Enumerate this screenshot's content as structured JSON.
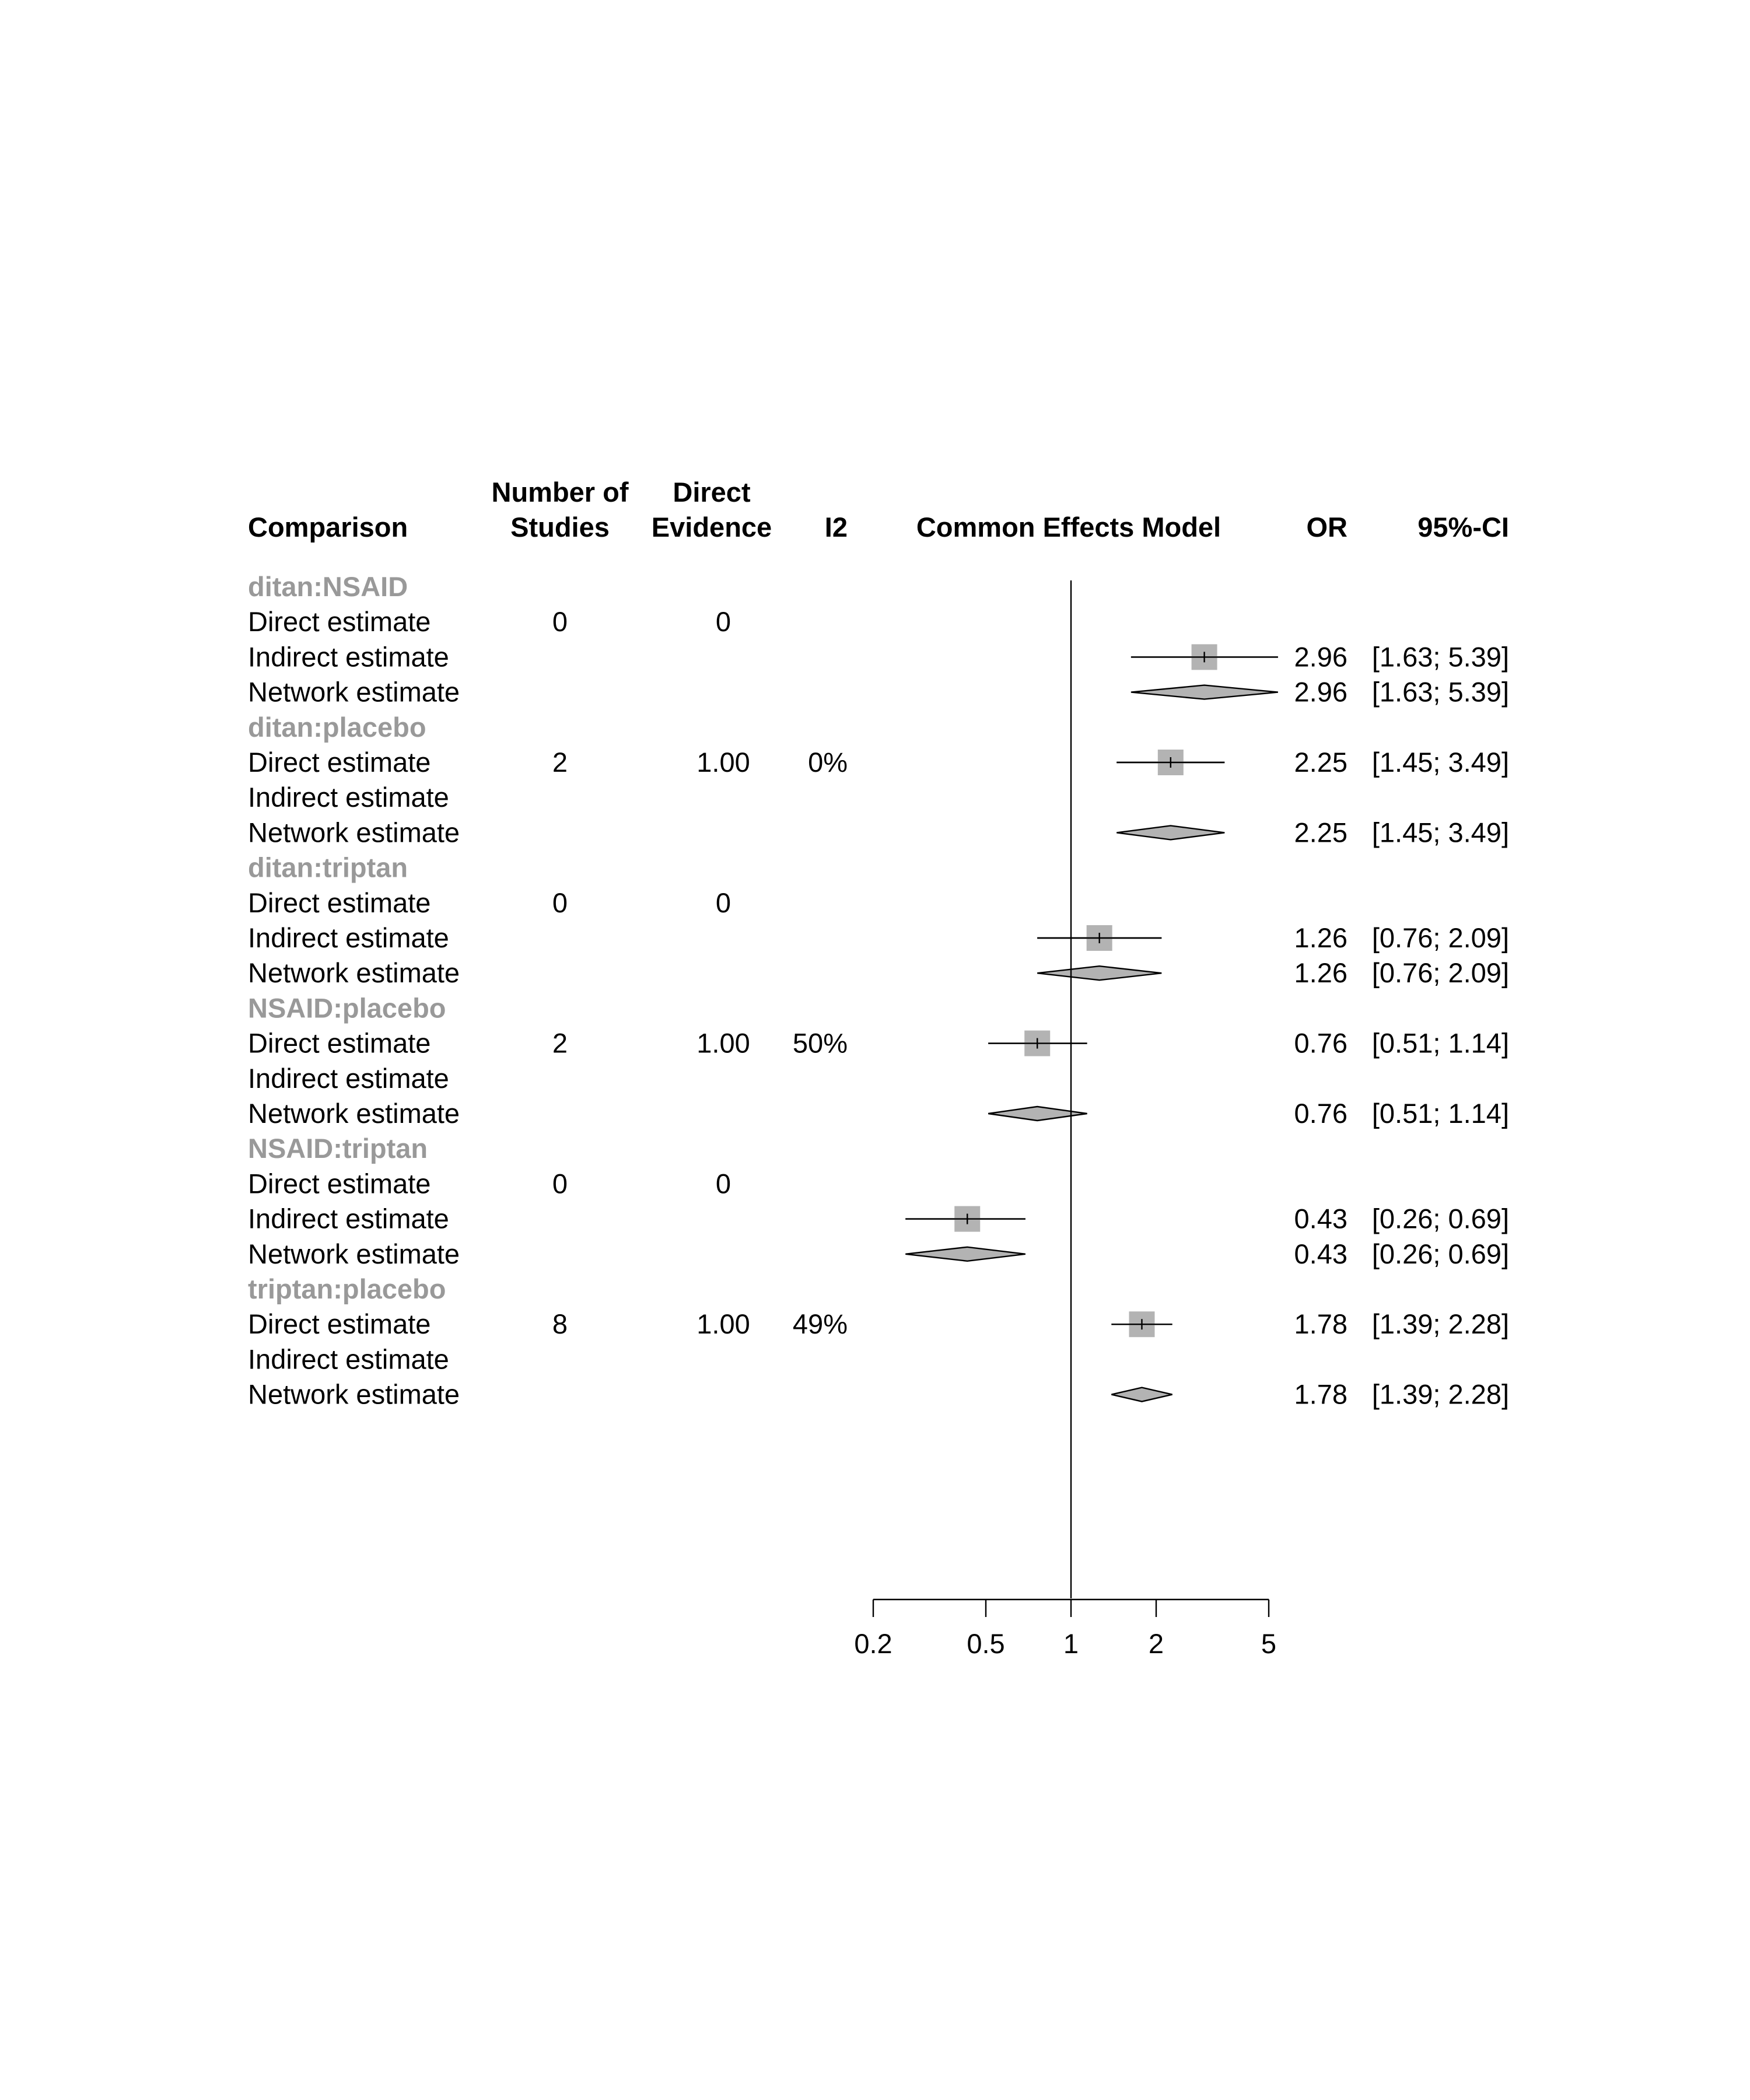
{
  "chart_data": {
    "type": "forest",
    "headers": {
      "comparison": "Comparison",
      "studies_line1": "Number of",
      "studies_line2": "Studies",
      "direct_line1": "Direct",
      "direct_line2": "Evidence",
      "i2": "I2",
      "model": "Common Effects Model",
      "or": "OR",
      "ci": "95%-CI"
    },
    "x_axis": {
      "scale": "log",
      "range": [
        0.2,
        5
      ],
      "ticks": [
        0.2,
        0.5,
        1,
        2,
        5
      ],
      "tick_labels": [
        "0.2",
        "0.5",
        "1",
        "2",
        "5"
      ],
      "reference": 1
    },
    "colors": {
      "square": "#b3b3b3",
      "diamond": "#b3b3b3",
      "group_label": "#999999",
      "line": "#000000"
    },
    "groups": [
      {
        "name": "ditan:NSAID",
        "rows": [
          {
            "label": "Direct estimate",
            "studies": "0",
            "direct": "0",
            "i2": "",
            "or": null,
            "lower": null,
            "upper": null,
            "or_text": "",
            "ci_text": "",
            "shape": "none"
          },
          {
            "label": "Indirect estimate",
            "studies": "",
            "direct": "",
            "i2": "",
            "or": 2.96,
            "lower": 1.63,
            "upper": 5.39,
            "or_text": "2.96",
            "ci_text": "[1.63; 5.39]",
            "shape": "square"
          },
          {
            "label": "Network estimate",
            "studies": "",
            "direct": "",
            "i2": "",
            "or": 2.96,
            "lower": 1.63,
            "upper": 5.39,
            "or_text": "2.96",
            "ci_text": "[1.63; 5.39]",
            "shape": "diamond"
          }
        ]
      },
      {
        "name": "ditan:placebo",
        "rows": [
          {
            "label": "Direct estimate",
            "studies": "2",
            "direct": "1.00",
            "i2": "0%",
            "or": 2.25,
            "lower": 1.45,
            "upper": 3.49,
            "or_text": "2.25",
            "ci_text": "[1.45; 3.49]",
            "shape": "square"
          },
          {
            "label": "Indirect estimate",
            "studies": "",
            "direct": "",
            "i2": "",
            "or": null,
            "lower": null,
            "upper": null,
            "or_text": "",
            "ci_text": "",
            "shape": "none"
          },
          {
            "label": "Network estimate",
            "studies": "",
            "direct": "",
            "i2": "",
            "or": 2.25,
            "lower": 1.45,
            "upper": 3.49,
            "or_text": "2.25",
            "ci_text": "[1.45; 3.49]",
            "shape": "diamond"
          }
        ]
      },
      {
        "name": "ditan:triptan",
        "rows": [
          {
            "label": "Direct estimate",
            "studies": "0",
            "direct": "0",
            "i2": "",
            "or": null,
            "lower": null,
            "upper": null,
            "or_text": "",
            "ci_text": "",
            "shape": "none"
          },
          {
            "label": "Indirect estimate",
            "studies": "",
            "direct": "",
            "i2": "",
            "or": 1.26,
            "lower": 0.76,
            "upper": 2.09,
            "or_text": "1.26",
            "ci_text": "[0.76; 2.09]",
            "shape": "square"
          },
          {
            "label": "Network estimate",
            "studies": "",
            "direct": "",
            "i2": "",
            "or": 1.26,
            "lower": 0.76,
            "upper": 2.09,
            "or_text": "1.26",
            "ci_text": "[0.76; 2.09]",
            "shape": "diamond"
          }
        ]
      },
      {
        "name": "NSAID:placebo",
        "rows": [
          {
            "label": "Direct estimate",
            "studies": "2",
            "direct": "1.00",
            "i2": "50%",
            "or": 0.76,
            "lower": 0.51,
            "upper": 1.14,
            "or_text": "0.76",
            "ci_text": "[0.51; 1.14]",
            "shape": "square"
          },
          {
            "label": "Indirect estimate",
            "studies": "",
            "direct": "",
            "i2": "",
            "or": null,
            "lower": null,
            "upper": null,
            "or_text": "",
            "ci_text": "",
            "shape": "none"
          },
          {
            "label": "Network estimate",
            "studies": "",
            "direct": "",
            "i2": "",
            "or": 0.76,
            "lower": 0.51,
            "upper": 1.14,
            "or_text": "0.76",
            "ci_text": "[0.51; 1.14]",
            "shape": "diamond"
          }
        ]
      },
      {
        "name": "NSAID:triptan",
        "rows": [
          {
            "label": "Direct estimate",
            "studies": "0",
            "direct": "0",
            "i2": "",
            "or": null,
            "lower": null,
            "upper": null,
            "or_text": "",
            "ci_text": "",
            "shape": "none"
          },
          {
            "label": "Indirect estimate",
            "studies": "",
            "direct": "",
            "i2": "",
            "or": 0.43,
            "lower": 0.26,
            "upper": 0.69,
            "or_text": "0.43",
            "ci_text": "[0.26; 0.69]",
            "shape": "square"
          },
          {
            "label": "Network estimate",
            "studies": "",
            "direct": "",
            "i2": "",
            "or": 0.43,
            "lower": 0.26,
            "upper": 0.69,
            "or_text": "0.43",
            "ci_text": "[0.26; 0.69]",
            "shape": "diamond"
          }
        ]
      },
      {
        "name": "triptan:placebo",
        "rows": [
          {
            "label": "Direct estimate",
            "studies": "8",
            "direct": "1.00",
            "i2": "49%",
            "or": 1.78,
            "lower": 1.39,
            "upper": 2.28,
            "or_text": "1.78",
            "ci_text": "[1.39; 2.28]",
            "shape": "square"
          },
          {
            "label": "Indirect estimate",
            "studies": "",
            "direct": "",
            "i2": "",
            "or": null,
            "lower": null,
            "upper": null,
            "or_text": "",
            "ci_text": "",
            "shape": "none"
          },
          {
            "label": "Network estimate",
            "studies": "",
            "direct": "",
            "i2": "",
            "or": 1.78,
            "lower": 1.39,
            "upper": 2.28,
            "or_text": "1.78",
            "ci_text": "[1.39; 2.28]",
            "shape": "diamond"
          }
        ]
      }
    ]
  }
}
